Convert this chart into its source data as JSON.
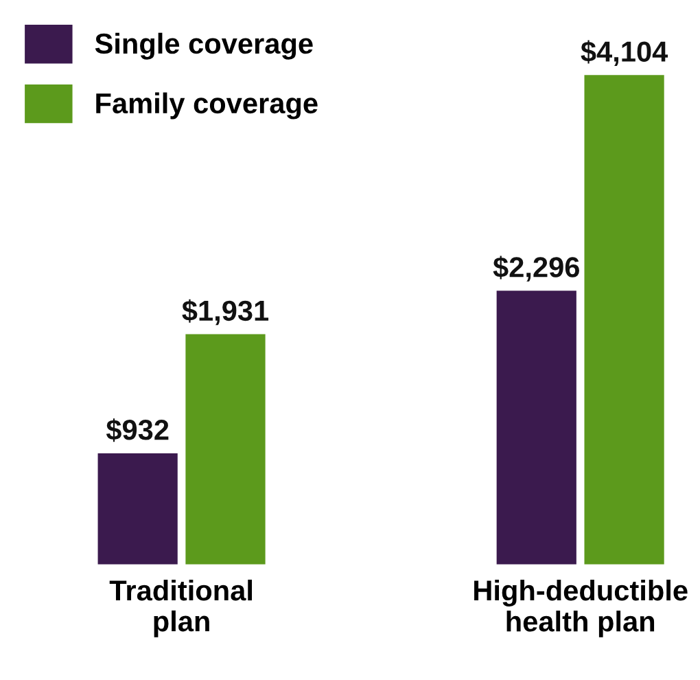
{
  "chart_data": {
    "type": "bar",
    "categories": [
      "Traditional\nplan",
      "High-deductible\nhealth plan"
    ],
    "series": [
      {
        "name": "Single coverage",
        "color": "#3b1a4e",
        "values": [
          932,
          2296
        ],
        "value_labels": [
          "$932",
          "$2,296"
        ]
      },
      {
        "name": "Family coverage",
        "color": "#5c9a1c",
        "values": [
          1931,
          4104
        ],
        "value_labels": [
          "$1,931",
          "$4,104"
        ]
      }
    ],
    "legend": "top left"
  }
}
